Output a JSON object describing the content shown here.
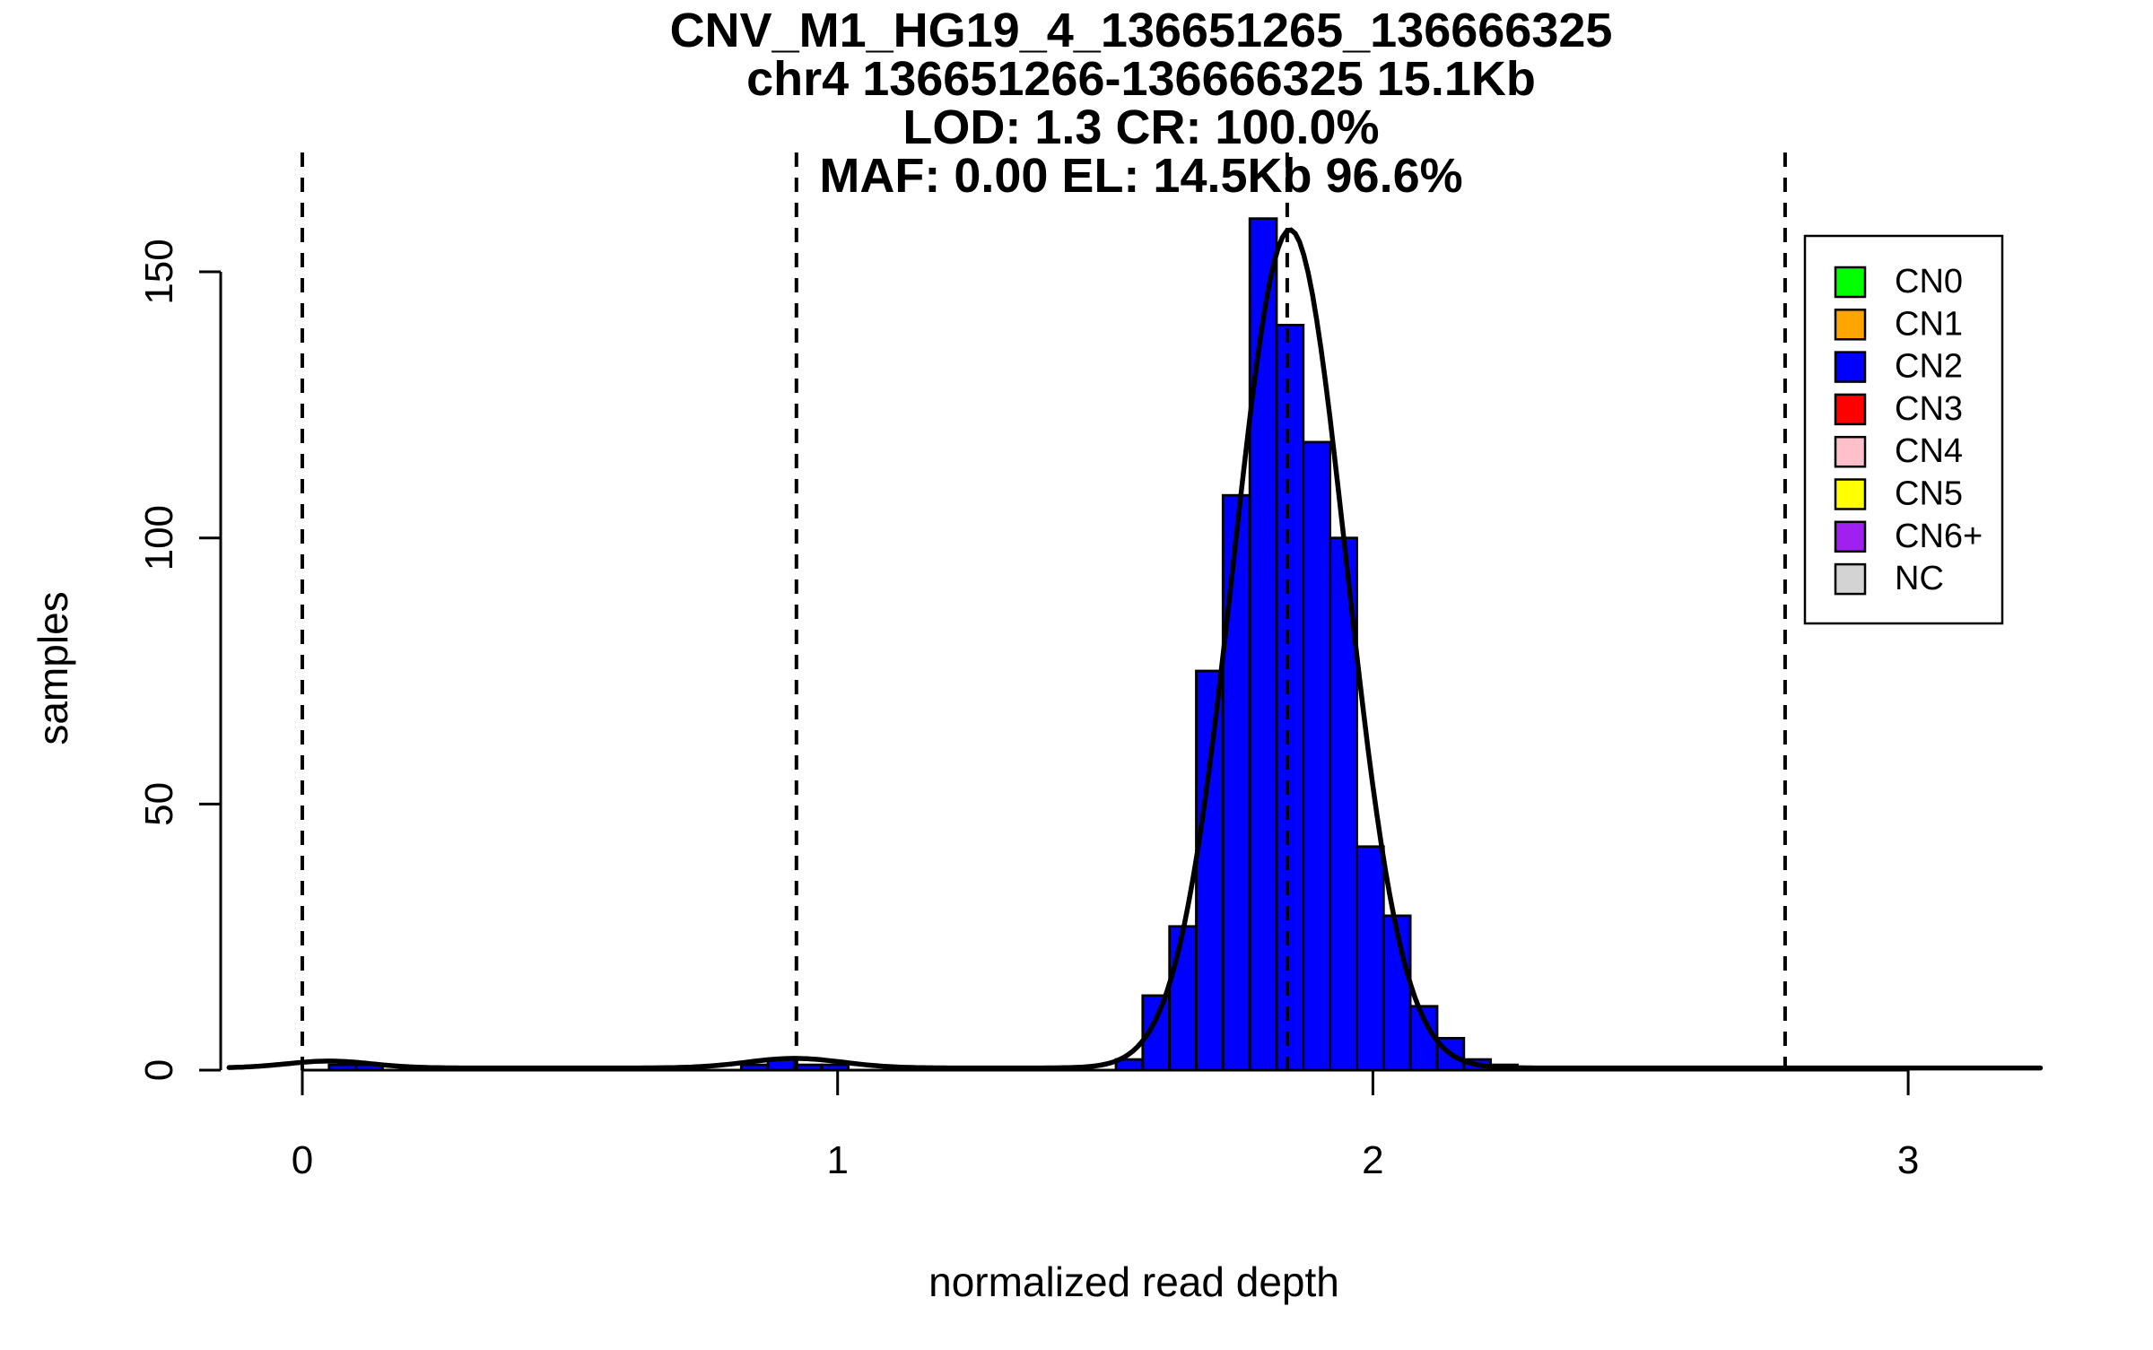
{
  "chart_data": {
    "type": "bar",
    "subtype": "histogram_with_density_curve",
    "title_lines": [
      "CNV_M1_HG19_4_136651265_136666325",
      "chr4 136651266-136666325 15.1Kb",
      "LOD: 1.3 CR: 100.0%",
      "MAF: 0.00 EL: 14.5Kb 96.6%"
    ],
    "xlabel": "normalized read depth",
    "ylabel": "samples",
    "x_tick_labels": [
      "0",
      "1",
      "2",
      "3"
    ],
    "x_tick_values": [
      0,
      1,
      2,
      3
    ],
    "y_tick_labels": [
      "0",
      "50",
      "100",
      "150"
    ],
    "y_tick_values": [
      0,
      50,
      100,
      150
    ],
    "xlim": [
      -0.14,
      3.28
    ],
    "ylim": [
      0,
      175
    ],
    "grid": false,
    "background_color": "#FFFFFF",
    "histogram": {
      "bin_width": 0.05,
      "bar_color": "#0000FF",
      "bar_border_color": "#000000",
      "bars": [
        {
          "x": 1.52,
          "count": 2
        },
        {
          "x": 1.57,
          "count": 14
        },
        {
          "x": 1.62,
          "count": 27
        },
        {
          "x": 1.67,
          "count": 75
        },
        {
          "x": 1.72,
          "count": 108
        },
        {
          "x": 1.77,
          "count": 160
        },
        {
          "x": 1.82,
          "count": 140
        },
        {
          "x": 1.87,
          "count": 118
        },
        {
          "x": 1.92,
          "count": 100
        },
        {
          "x": 1.97,
          "count": 42
        },
        {
          "x": 2.02,
          "count": 29
        },
        {
          "x": 2.07,
          "count": 12
        },
        {
          "x": 2.12,
          "count": 6
        },
        {
          "x": 2.17,
          "count": 2
        },
        {
          "x": 2.22,
          "count": 1
        }
      ],
      "minor_bars": [
        {
          "x": 0.05,
          "count": 1
        },
        {
          "x": 0.1,
          "count": 1
        },
        {
          "x": 0.82,
          "count": 1
        },
        {
          "x": 0.87,
          "count": 2
        },
        {
          "x": 0.92,
          "count": 1
        },
        {
          "x": 0.97,
          "count": 1
        }
      ]
    },
    "density_curve": {
      "color": "#000000",
      "x_range": [
        -0.137,
        3.25
      ],
      "baseline_offset": 0.4,
      "components": [
        {
          "mean": 1.845,
          "sd": 0.105,
          "amplitude": 157.5
        },
        {
          "mean": 0.92,
          "sd": 0.09,
          "amplitude": 1.8
        },
        {
          "mean": 0.05,
          "sd": 0.08,
          "amplitude": 1.3
        }
      ]
    },
    "dashed_lines": {
      "color": "#000000",
      "x_values": [
        0,
        0.923,
        1.84,
        2.77
      ]
    },
    "legend": {
      "position": "top-right",
      "entries": [
        {
          "label": "CN0",
          "color": "#00FF00"
        },
        {
          "label": "CN1",
          "color": "#FFA500"
        },
        {
          "label": "CN2",
          "color": "#0000FF"
        },
        {
          "label": "CN3",
          "color": "#FF0000"
        },
        {
          "label": "CN4",
          "color": "#FFC0CB"
        },
        {
          "label": "CN5",
          "color": "#FFFF00"
        },
        {
          "label": "CN6+",
          "color": "#A020F0"
        },
        {
          "label": "NC",
          "color": "#D3D3D3"
        }
      ]
    }
  }
}
